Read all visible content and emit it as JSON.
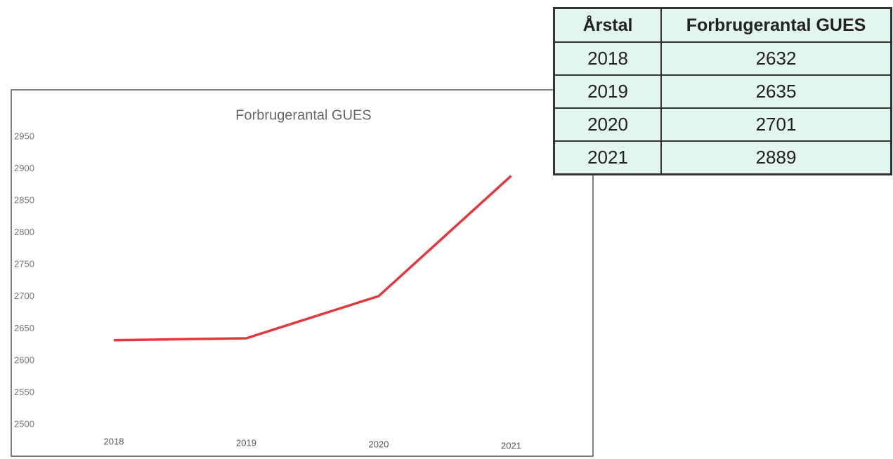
{
  "chart_data": {
    "type": "line",
    "title": "Forbrugerantal GUES",
    "categories": [
      "2018",
      "2019",
      "2020",
      "2021"
    ],
    "series": [
      {
        "name": "Forbrugerantal GUES",
        "color": "#e03a3e",
        "values": [
          2632,
          2635,
          2701,
          2889
        ]
      }
    ],
    "ylim": [
      2500,
      2950
    ],
    "yticks": [
      2500,
      2550,
      2600,
      2650,
      2700,
      2750,
      2800,
      2850,
      2900,
      2950
    ]
  },
  "table": {
    "header": [
      "Årstal",
      "Forbrugerantal GUES"
    ],
    "rows": [
      [
        "2018",
        "2632"
      ],
      [
        "2019",
        "2635"
      ],
      [
        "2020",
        "2701"
      ],
      [
        "2021",
        "2889"
      ]
    ]
  }
}
